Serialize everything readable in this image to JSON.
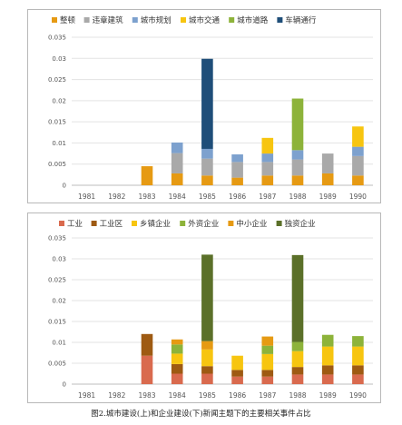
{
  "caption": "图2.城市建设(上)和企业建设(下)新闻主题下的主要相关事件占比",
  "chart_data": [
    {
      "type": "bar",
      "stacked": true,
      "categories": [
        "1981",
        "1982",
        "1983",
        "1984",
        "1985",
        "1986",
        "1987",
        "1988",
        "1989",
        "1990"
      ],
      "ylim": [
        0,
        0.035
      ],
      "yticks": [
        "0",
        "0.005",
        "0.01",
        "0.015",
        "0.02",
        "0.025",
        "0.03",
        "0.035"
      ],
      "legend_position": "top",
      "grid": true,
      "series": [
        {
          "name": "整顿",
          "color": "#E69A13",
          "values": [
            0,
            0,
            0.0045,
            0.0028,
            0.0023,
            0.0018,
            0.0023,
            0.0023,
            0.0028,
            0.0023
          ]
        },
        {
          "name": "违章建筑",
          "color": "#A9A9A9",
          "values": [
            0,
            0,
            0,
            0.0048,
            0.004,
            0.0037,
            0.0032,
            0.0038,
            0.0047,
            0.0046
          ]
        },
        {
          "name": "城市规划",
          "color": "#7DA1CE",
          "values": [
            0,
            0,
            0,
            0.0025,
            0.0023,
            0.0018,
            0.002,
            0.0022,
            0,
            0.0022
          ]
        },
        {
          "name": "城市交通",
          "color": "#F7C510",
          "values": [
            0,
            0,
            0,
            0,
            0,
            0,
            0.0037,
            0,
            0,
            0.0048
          ]
        },
        {
          "name": "城市道路",
          "color": "#8DB33A",
          "values": [
            0,
            0,
            0,
            0,
            0,
            0,
            0,
            0.0122,
            0,
            0
          ]
        },
        {
          "name": "车辆通行",
          "color": "#1F4E79",
          "values": [
            0,
            0,
            0,
            0,
            0.0213,
            0,
            0,
            0,
            0,
            0
          ]
        }
      ]
    },
    {
      "type": "bar",
      "stacked": true,
      "categories": [
        "1981",
        "1982",
        "1983",
        "1984",
        "1985",
        "1986",
        "1987",
        "1988",
        "1989",
        "1990"
      ],
      "ylim": [
        0,
        0.035
      ],
      "yticks": [
        "0",
        "0.005",
        "0.01",
        "0.015",
        "0.02",
        "0.025",
        "0.03",
        "0.035"
      ],
      "legend_position": "top",
      "grid": true,
      "series": [
        {
          "name": "工业",
          "color": "#D96A4E",
          "values": [
            0,
            0,
            0.0068,
            0.0025,
            0.0025,
            0.0018,
            0.0018,
            0.0023,
            0.0023,
            0.0023
          ]
        },
        {
          "name": "工业区",
          "color": "#9E5A12",
          "values": [
            0,
            0,
            0.0052,
            0.0023,
            0.0018,
            0.0016,
            0.0016,
            0.0018,
            0.0022,
            0.0022
          ]
        },
        {
          "name": "乡镇企业",
          "color": "#F7C510",
          "values": [
            0,
            0,
            0,
            0.0025,
            0.004,
            0.0034,
            0.0038,
            0.0038,
            0.0045,
            0.0045
          ]
        },
        {
          "name": "外资企业",
          "color": "#8DB33A",
          "values": [
            0,
            0,
            0,
            0.0022,
            0,
            0,
            0.002,
            0.0022,
            0.0028,
            0.0025
          ]
        },
        {
          "name": "中小企业",
          "color": "#E69A13",
          "values": [
            0,
            0,
            0,
            0.0012,
            0.002,
            0,
            0.0022,
            0,
            0,
            0
          ]
        },
        {
          "name": "独资企业",
          "color": "#5B7029",
          "values": [
            0,
            0,
            0,
            0,
            0.0207,
            0,
            0,
            0.0208,
            0,
            0
          ]
        }
      ]
    }
  ]
}
